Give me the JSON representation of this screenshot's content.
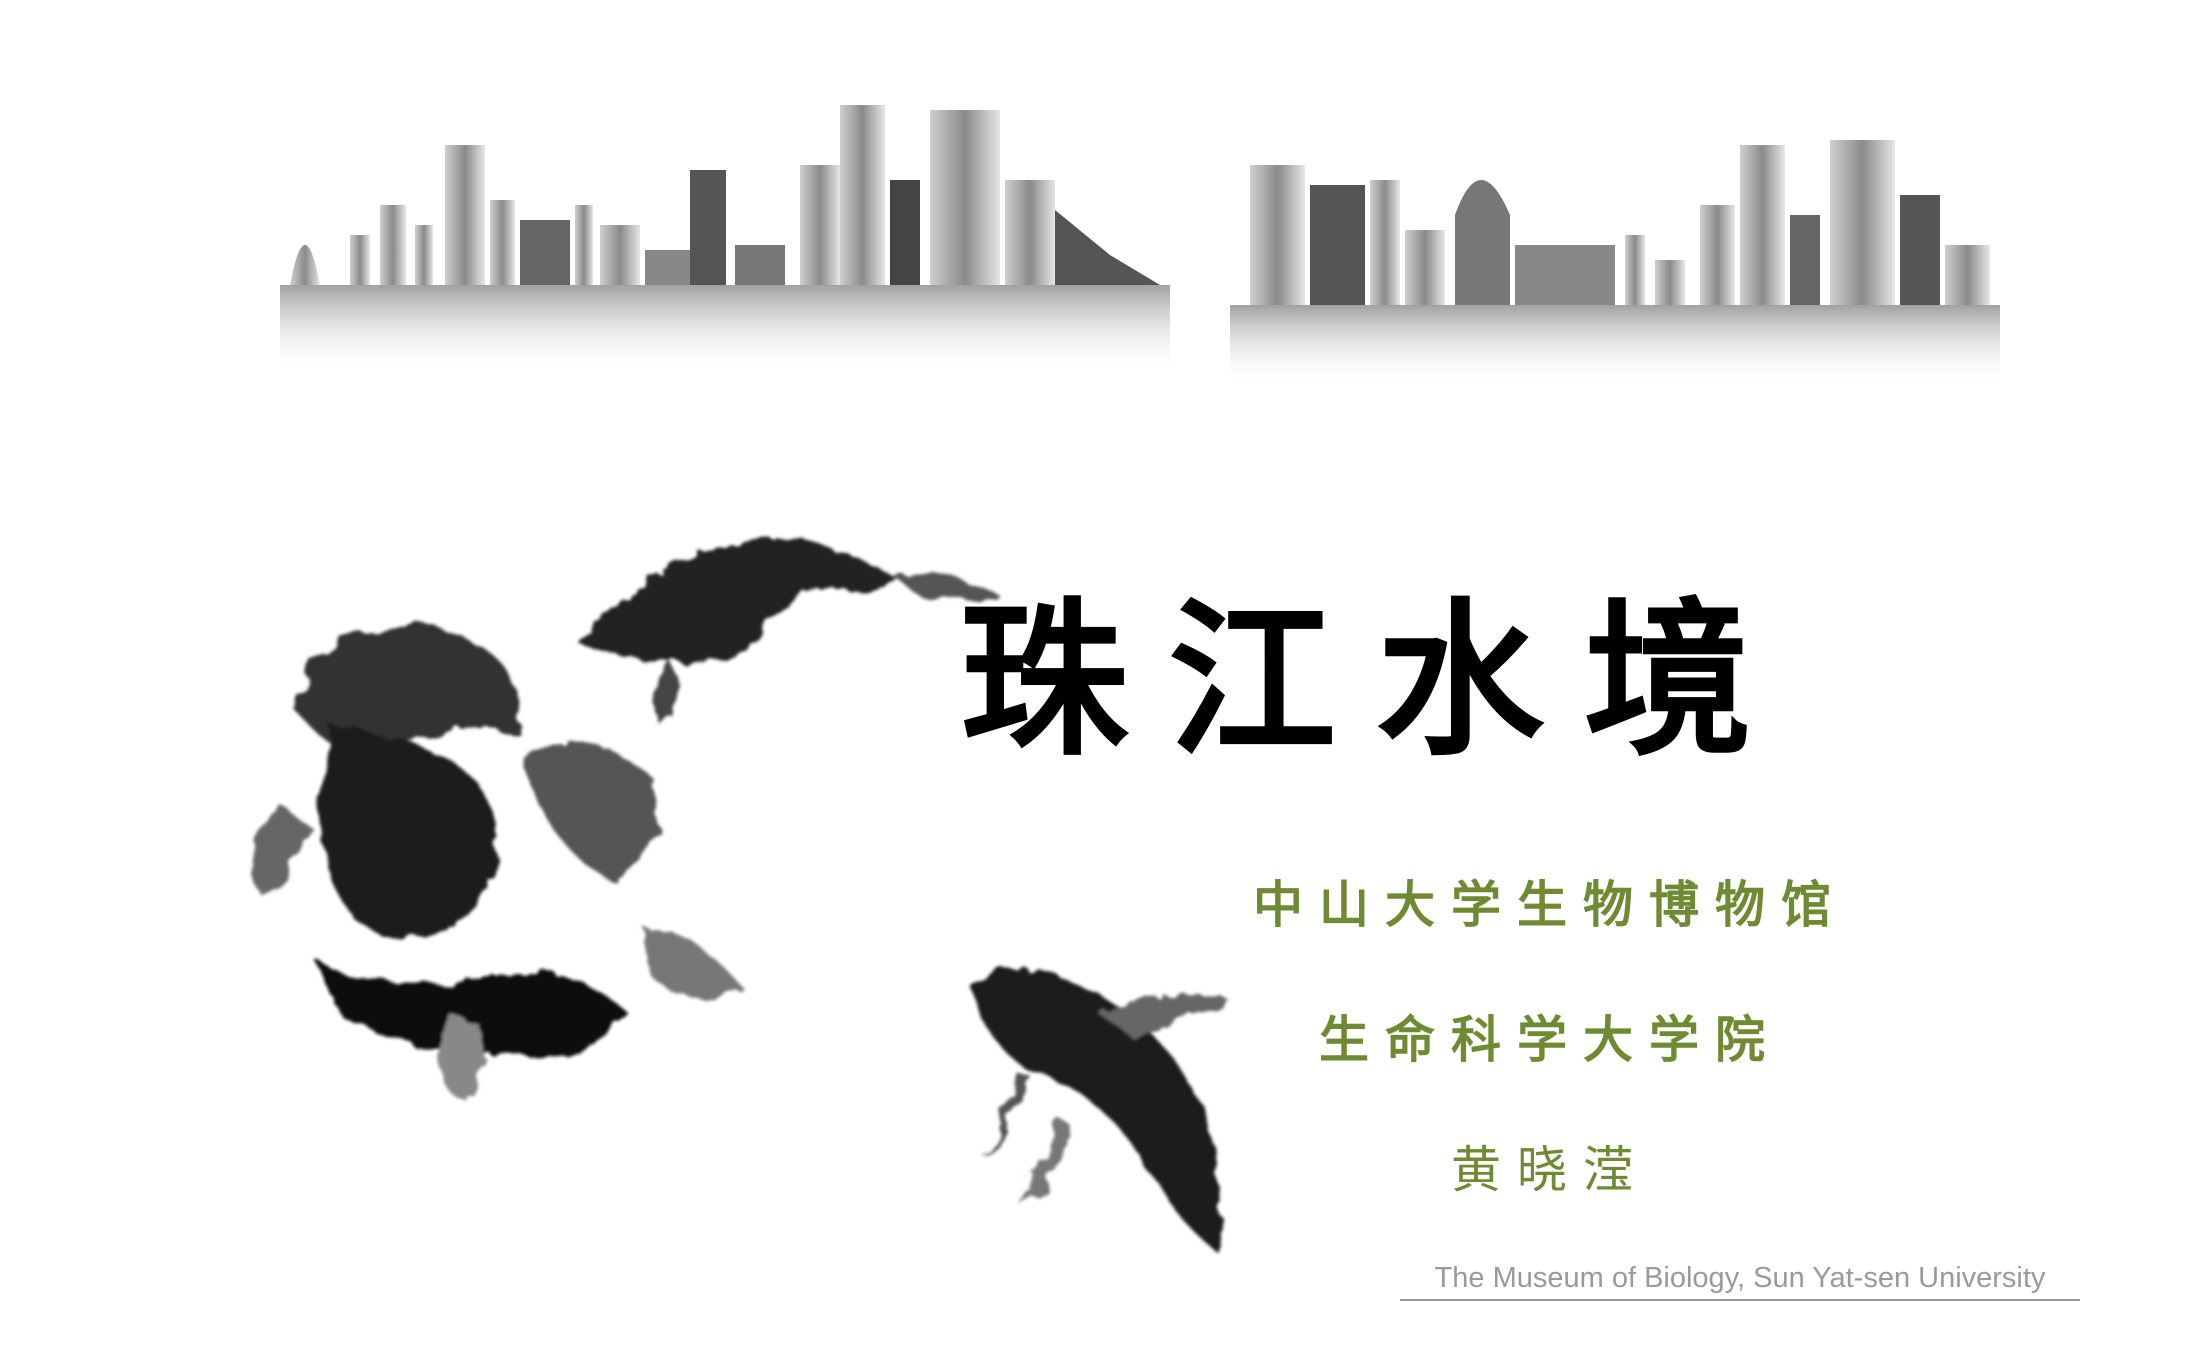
{
  "title": "珠江水境",
  "subtitle_lines": [
    "中山大学生物博物馆",
    "生命科学大学院",
    "黄晓滢"
  ],
  "footer": "The Museum of Biology, Sun Yat-sen University",
  "colors": {
    "title": "#000000",
    "subtitle": "#6e8b33",
    "footer": "#9a9a9a"
  },
  "images": {
    "skyline": "city-skyline-reflection",
    "fish": "ink-painted-goldfish"
  }
}
